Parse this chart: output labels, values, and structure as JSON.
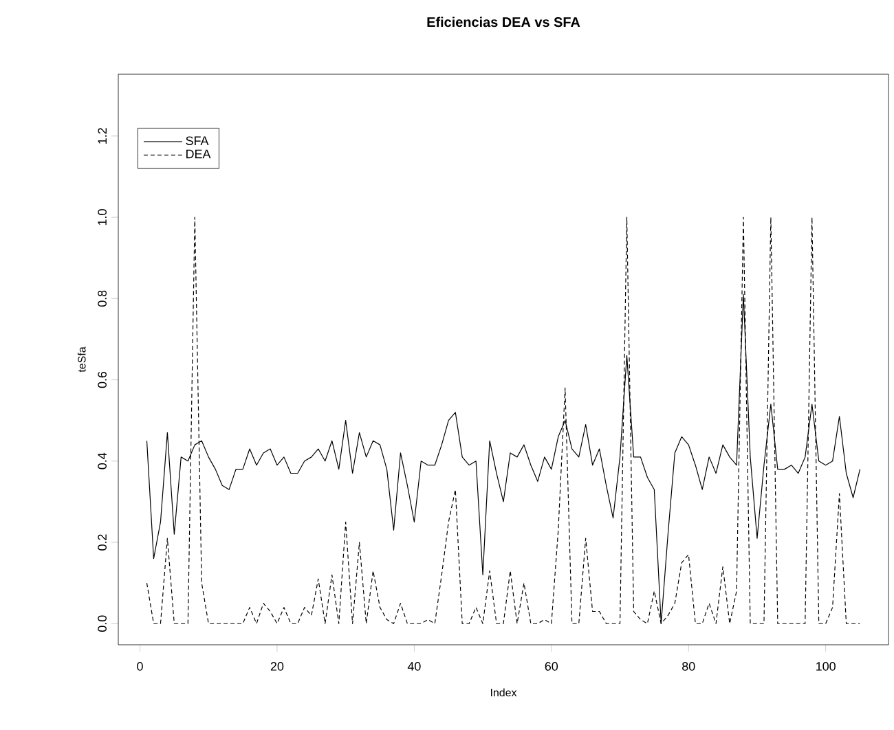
{
  "chart_data": {
    "type": "line",
    "title": "Eficiencias DEA vs SFA",
    "xlabel": "Index",
    "ylabel": "teSfa",
    "x": [
      1,
      2,
      3,
      4,
      5,
      6,
      7,
      8,
      9,
      10,
      11,
      12,
      13,
      14,
      15,
      16,
      17,
      18,
      19,
      20,
      21,
      22,
      23,
      24,
      25,
      26,
      27,
      28,
      29,
      30,
      31,
      32,
      33,
      34,
      35,
      36,
      37,
      38,
      39,
      40,
      41,
      42,
      43,
      44,
      45,
      46,
      47,
      48,
      49,
      50,
      51,
      52,
      53,
      54,
      55,
      56,
      57,
      58,
      59,
      60,
      61,
      62,
      63,
      64,
      65,
      66,
      67,
      68,
      69,
      70,
      71,
      72,
      73,
      74,
      75,
      76,
      77,
      78,
      79,
      80,
      81,
      82,
      83,
      84,
      85,
      86,
      87,
      88,
      89,
      90,
      91,
      92,
      93,
      94,
      95,
      96,
      97,
      98,
      99,
      100,
      101,
      102,
      103,
      104,
      105
    ],
    "series": [
      {
        "name": "SFA",
        "color": "#000000",
        "line_style": "solid",
        "values": [
          0.45,
          0.16,
          0.25,
          0.47,
          0.22,
          0.41,
          0.4,
          0.44,
          0.45,
          0.41,
          0.38,
          0.34,
          0.33,
          0.38,
          0.38,
          0.43,
          0.39,
          0.42,
          0.43,
          0.39,
          0.41,
          0.37,
          0.37,
          0.4,
          0.41,
          0.43,
          0.4,
          0.45,
          0.38,
          0.5,
          0.37,
          0.47,
          0.41,
          0.45,
          0.44,
          0.38,
          0.23,
          0.42,
          0.34,
          0.25,
          0.4,
          0.39,
          0.39,
          0.44,
          0.5,
          0.52,
          0.41,
          0.39,
          0.4,
          0.12,
          0.45,
          0.37,
          0.3,
          0.42,
          0.41,
          0.44,
          0.39,
          0.35,
          0.41,
          0.38,
          0.46,
          0.5,
          0.43,
          0.41,
          0.49,
          0.39,
          0.43,
          0.34,
          0.26,
          0.41,
          0.66,
          0.41,
          0.41,
          0.36,
          0.33,
          0.0,
          0.22,
          0.42,
          0.46,
          0.44,
          0.39,
          0.33,
          0.41,
          0.37,
          0.44,
          0.41,
          0.39,
          0.81,
          0.41,
          0.21,
          0.39,
          0.54,
          0.38,
          0.38,
          0.39,
          0.37,
          0.41,
          0.54,
          0.4,
          0.39,
          0.4,
          0.51,
          0.37,
          0.31,
          0.38
        ]
      },
      {
        "name": "DEA",
        "color": "#000000",
        "line_style": "dashed",
        "values": [
          0.1,
          0,
          0,
          0.21,
          0,
          0,
          0,
          1.0,
          0.1,
          0,
          0,
          0,
          0,
          0,
          0,
          0.04,
          0,
          0.05,
          0.03,
          0,
          0.04,
          0,
          0,
          0.04,
          0.02,
          0.11,
          0,
          0.12,
          0,
          0.25,
          0,
          0.2,
          0,
          0.13,
          0.04,
          0.01,
          0,
          0.05,
          0,
          0,
          0,
          0.01,
          0,
          0.12,
          0.25,
          0.33,
          0,
          0,
          0.04,
          0,
          0.13,
          0,
          0,
          0.13,
          0,
          0.1,
          0,
          0,
          0.01,
          0,
          0.23,
          0.58,
          0,
          0,
          0.21,
          0.03,
          0.03,
          0,
          0,
          0,
          1.0,
          0.03,
          0.01,
          0,
          0.08,
          0,
          0.02,
          0.05,
          0.15,
          0.17,
          0,
          0,
          0.05,
          0,
          0.14,
          0,
          0.08,
          1.0,
          0,
          0,
          0,
          1.0,
          0,
          0,
          0,
          0,
          0,
          1.0,
          0,
          0,
          0.04,
          0.32,
          0,
          0,
          0
        ]
      }
    ],
    "xlim": [
      -3.16,
      109.16
    ],
    "ylim": [
      -0.052,
      1.352
    ],
    "xticks": [
      0,
      20,
      40,
      60,
      80,
      100
    ],
    "yticks": [
      {
        "value": 0,
        "label": "0.0"
      },
      {
        "value": 0.2,
        "label": "0.2"
      },
      {
        "value": 0.4,
        "label": "0.4"
      },
      {
        "value": 0.6,
        "label": "0.6"
      },
      {
        "value": 0.8,
        "label": "0.8"
      },
      {
        "value": 1.0,
        "label": "1.0"
      },
      {
        "value": 1.2,
        "label": "1.2"
      }
    ],
    "legend": "top left",
    "grid": false
  }
}
